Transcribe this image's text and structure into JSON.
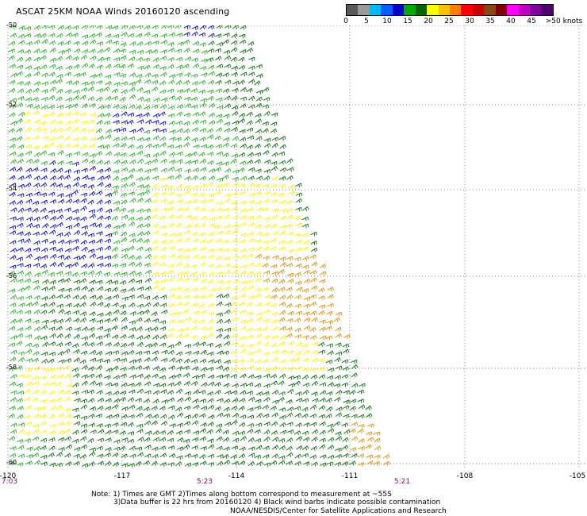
{
  "title": "ASCAT 25KM NOAA Winds 20160120 ascending",
  "legend": {
    "colors": [
      "#595959",
      "#9a9a9a",
      "#00b9ff",
      "#005fff",
      "#0000c8",
      "#00aa00",
      "#006400",
      "#ffff00",
      "#ffc000",
      "#ff7f00",
      "#ff0000",
      "#c80000",
      "#8b4513",
      "#800000",
      "#ff00ff",
      "#c000c0",
      "#8000a0",
      "#500070"
    ],
    "ticks": [
      "0",
      "5",
      "10",
      "15",
      "20",
      "25",
      "30",
      "35",
      "40",
      "45",
      ">50 knots"
    ]
  },
  "map": {
    "lat_labels": [
      "-50",
      "-52",
      "-54",
      "-56",
      "-58",
      "-60"
    ],
    "lon_labels": [
      "-120",
      "-117",
      "-114",
      "-111",
      "-108",
      "-105"
    ],
    "time_labels": [
      "7:03",
      "5:23",
      "5:21"
    ]
  },
  "notes": {
    "line1": "Note: 1) Times are GMT 2)Times along bottom correspond to measurement at ~55S",
    "line2": "3)Data buffer is 22 hrs from 20160120 4) Black wind barbs indicate possible contamination",
    "line3": "NOAA/NESDIS/Center for Satellite Applications and Research"
  },
  "wind_field": {
    "zones": [
      {
        "name": "blue",
        "color": "#0000c8"
      },
      {
        "name": "green-light",
        "color": "#22aa22"
      },
      {
        "name": "green-dark",
        "color": "#0a6a0a"
      },
      {
        "name": "yellow",
        "color": "#ffee00"
      },
      {
        "name": "orange",
        "color": "#e08a00"
      }
    ]
  }
}
